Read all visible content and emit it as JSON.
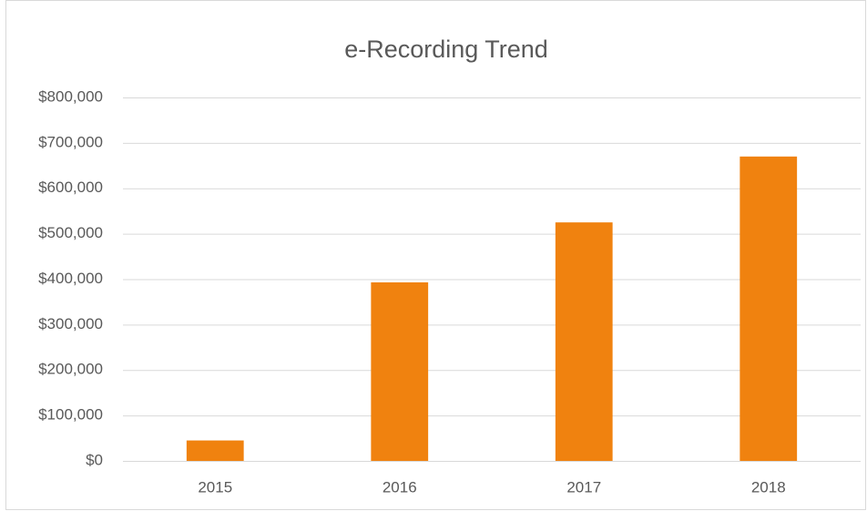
{
  "chart_data": {
    "type": "bar",
    "title": "e-Recording Trend",
    "categories": [
      "2015",
      "2016",
      "2017",
      "2018"
    ],
    "values": [
      45000,
      393000,
      525000,
      670000
    ],
    "color": "#f0820f",
    "ylim": [
      0,
      800000
    ],
    "yticks": [
      {
        "value": 0,
        "label": "$0"
      },
      {
        "value": 100000,
        "label": "$100,000"
      },
      {
        "value": 200000,
        "label": "$200,000"
      },
      {
        "value": 300000,
        "label": "$300,000"
      },
      {
        "value": 400000,
        "label": "$400,000"
      },
      {
        "value": 500000,
        "label": "$500,000"
      },
      {
        "value": 600000,
        "label": "$600,000"
      },
      {
        "value": 700000,
        "label": "$700,000"
      },
      {
        "value": 800000,
        "label": "$800,000"
      }
    ],
    "grid": true
  }
}
